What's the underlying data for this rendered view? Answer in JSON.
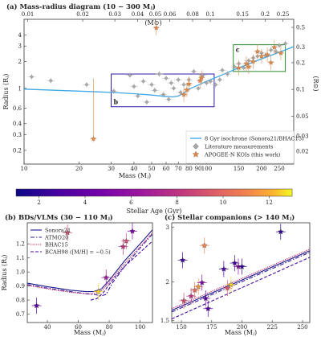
{
  "chart_data": [
    {
      "type": "scatter",
      "panel": "a",
      "title": "(a) Mass-radius diagram (10 − 300 Mⱼ)",
      "xlabel": "Mass (Mⱼ)",
      "ylabel": "Radius (Rⱼ)",
      "ylabel_right": "(R⊙)",
      "top_axis_label": "(M⊙)",
      "xscale": "log",
      "yscale": "log",
      "xlim": [
        10,
        300
      ],
      "ylim": [
        0.14,
        6
      ],
      "xticks": [
        10,
        20,
        30,
        40,
        50,
        60,
        70,
        80,
        90,
        100,
        150,
        200,
        250
      ],
      "xtick_labels": [
        "10",
        "20",
        "30",
        "40",
        "50",
        "60",
        "70",
        "80",
        "90",
        "100",
        "150",
        "200",
        "250"
      ],
      "yticks": [
        0.2,
        0.3,
        0.4,
        0.6,
        1,
        2,
        3,
        4
      ],
      "ytick_labels": [
        "0.2",
        "0.3",
        "0.4",
        "0.6",
        "1",
        "2",
        "3",
        "4"
      ],
      "top_ticks": [
        0.01,
        0.02,
        0.03,
        0.04,
        0.05,
        0.06,
        0.08,
        0.1,
        0.15,
        0.2,
        0.25
      ],
      "top_tick_labels": [
        "0.01",
        "0.02",
        "0.03",
        "0.04",
        "0.05",
        "0.06",
        "0.08",
        "0.1",
        "0.15",
        "0.2",
        "0.25"
      ],
      "right_ticks": [
        0.02,
        0.03,
        0.05,
        0.1,
        0.2,
        0.3,
        0.5
      ],
      "right_tick_labels": [
        "0.02",
        "0.03",
        "0.05",
        "0.1",
        "0.2",
        "0.3",
        "0.5"
      ],
      "boxes": [
        {
          "label": "b",
          "x": [
            30,
            110
          ],
          "y": [
            0.62,
            1.45
          ],
          "color": "#2a1aa6"
        },
        {
          "label": "c",
          "x": [
            140,
            270
          ],
          "y": [
            1.55,
            3.1
          ],
          "color": "#2a8a2a"
        }
      ],
      "legend_position": "lower right",
      "series": [
        {
          "name": "8 Gyr isochrone (Sonora21/BHAC15)",
          "x": [
            10,
            20,
            30,
            40,
            50,
            60,
            65,
            70,
            75,
            80,
            90,
            100,
            120,
            150,
            200,
            250,
            300
          ],
          "y": [
            0.98,
            0.93,
            0.9,
            0.87,
            0.84,
            0.81,
            0.8,
            0.82,
            0.88,
            0.98,
            1.09,
            1.2,
            1.4,
            1.7,
            2.15,
            2.55,
            2.95
          ]
        },
        {
          "name": "Literature measurements",
          "x": [
            11,
            14,
            22,
            31,
            38,
            40,
            42,
            45,
            47,
            50,
            52,
            55,
            58,
            60,
            62,
            64,
            66,
            70,
            72,
            75,
            80,
            85,
            90,
            95,
            100,
            105,
            112,
            118,
            122,
            130,
            142,
            150,
            160,
            170,
            180,
            190,
            200,
            210,
            225,
            240,
            250,
            270
          ],
          "y": [
            1.35,
            1.22,
            1.1,
            0.93,
            1.4,
            1.05,
            0.82,
            1.2,
            0.7,
            1.1,
            0.95,
            1.45,
            0.85,
            1.3,
            0.75,
            1.15,
            1.0,
            1.25,
            0.9,
            1.1,
            1.25,
            1.55,
            1.0,
            1.4,
            1.15,
            1.2,
            1.1,
            1.25,
            1.6,
            1.45,
            1.75,
            1.9,
            1.7,
            2.05,
            2.2,
            2.3,
            2.5,
            2.35,
            2.7,
            2.6,
            3.05,
            3.2
          ]
        },
        {
          "name": "APOGEE-N KOIs (this work)",
          "x": [
            24,
            53,
            75,
            78,
            80,
            92,
            94,
            150,
            165,
            170,
            180,
            190,
            200,
            215,
            225,
            235,
            255
          ],
          "y": [
            0.27,
            4.8,
            0.85,
            0.96,
            1.12,
            1.22,
            1.32,
            1.7,
            1.9,
            1.75,
            2.0,
            2.6,
            2.3,
            2.4,
            1.95,
            2.9,
            2.5
          ]
        }
      ]
    },
    {
      "type": "colorbar",
      "label": "Stellar Age (Gyr)",
      "range": [
        1,
        13
      ],
      "ticks": [
        2,
        4,
        6,
        8,
        10,
        12
      ],
      "tick_labels": [
        "2",
        "4",
        "6",
        "8",
        "10",
        "12"
      ]
    },
    {
      "type": "scatter",
      "panel": "b",
      "title": "(b) BDs/VLMs (30 − 110 Mⱼ)",
      "xlabel": "Mass (Mⱼ)",
      "ylabel": "Radius (Rⱼ)",
      "xlim": [
        27,
        108
      ],
      "ylim": [
        0.64,
        1.35
      ],
      "xticks": [
        40,
        60,
        80,
        100
      ],
      "xtick_labels": [
        "40",
        "60",
        "80",
        "100"
      ],
      "yticks": [
        0.7,
        0.8,
        0.9,
        1.0,
        1.1,
        1.2
      ],
      "ytick_labels": [
        "0.7",
        "0.8",
        "0.9",
        "1.0",
        "1.1",
        "1.2"
      ],
      "legend_position": "top-left",
      "series": [
        {
          "name": "Sonora21",
          "x": [
            27,
            40,
            55,
            65,
            70,
            75,
            80,
            90,
            100,
            108
          ],
          "y": [
            0.92,
            0.895,
            0.87,
            0.86,
            0.86,
            0.88,
            0.94,
            1.08,
            1.2,
            1.3
          ]
        },
        {
          "name": "ATMO20",
          "x": [
            27,
            40,
            55,
            65,
            70,
            75,
            78,
            82,
            90,
            100,
            108
          ],
          "y": [
            0.91,
            0.885,
            0.86,
            0.845,
            0.84,
            0.83,
            0.84,
            0.92,
            1.04,
            1.17,
            1.27
          ]
        },
        {
          "name": "BHAC15",
          "x": [
            27,
            40,
            55,
            65,
            70,
            75,
            80,
            90,
            100,
            108
          ],
          "y": [
            0.905,
            0.88,
            0.855,
            0.845,
            0.845,
            0.865,
            0.925,
            1.06,
            1.18,
            1.28
          ]
        },
        {
          "name": "BCAH98 ([M/H] = −0.5)",
          "x": [
            68,
            72,
            76,
            80,
            85,
            90,
            100,
            108
          ],
          "y": [
            0.8,
            0.81,
            0.85,
            0.91,
            0.98,
            1.04,
            1.14,
            1.22
          ]
        }
      ],
      "points": [
        {
          "x": 33,
          "y": 0.76,
          "age": 3.6
        },
        {
          "x": 53,
          "y": 1.28,
          "age": 9
        },
        {
          "x": 73,
          "y": 0.86,
          "age": 12.5
        },
        {
          "x": 78,
          "y": 0.96,
          "age": 6.5
        },
        {
          "x": 89,
          "y": 1.18,
          "age": 8
        },
        {
          "x": 91,
          "y": 1.22,
          "age": 9
        },
        {
          "x": 95,
          "y": 1.29,
          "age": 5
        }
      ]
    },
    {
      "type": "scatter",
      "panel": "c",
      "title": "(c) Stellar companions (> 140 Mⱼ)",
      "xlabel": "Mass (Mⱼ)",
      "xlim": [
        142,
        256
      ],
      "ylim": [
        1.48,
        3.1
      ],
      "xticks": [
        150,
        175,
        200,
        225,
        250
      ],
      "xtick_labels": [
        "150",
        "175",
        "200",
        "225",
        "250"
      ],
      "yticks": [
        1.5,
        2,
        3
      ],
      "ytick_labels": [
        "1.5",
        "2",
        "3"
      ],
      "series": [
        {
          "name": "Sonora21",
          "x": [
            142,
            256
          ],
          "y": [
            1.62,
            2.52
          ]
        },
        {
          "name": "ATMO20",
          "x": [
            142,
            256
          ],
          "y": [
            1.6,
            2.49
          ]
        },
        {
          "name": "BHAC15",
          "x": [
            142,
            256
          ],
          "y": [
            1.64,
            2.55
          ]
        },
        {
          "name": "BCAH98 ([M/H] = −0.5)",
          "x": [
            142,
            256
          ],
          "y": [
            1.52,
            2.4
          ]
        }
      ],
      "points": [
        {
          "x": 151,
          "y": 2.35,
          "age": 2.6
        },
        {
          "x": 152,
          "y": 1.74,
          "age": 9
        },
        {
          "x": 158,
          "y": 1.8,
          "age": 8
        },
        {
          "x": 161,
          "y": 1.88,
          "age": 10
        },
        {
          "x": 164,
          "y": 1.93,
          "age": 11.5
        },
        {
          "x": 167,
          "y": 1.99,
          "age": 5
        },
        {
          "x": 169,
          "y": 2.62,
          "age": 11
        },
        {
          "x": 170,
          "y": 1.77,
          "age": 4
        },
        {
          "x": 172,
          "y": 1.64,
          "age": 3.5
        },
        {
          "x": 185,
          "y": 2.2,
          "age": 3
        },
        {
          "x": 188,
          "y": 1.91,
          "age": 9.5
        },
        {
          "x": 191,
          "y": 1.96,
          "age": 12.5
        },
        {
          "x": 194,
          "y": 2.3,
          "age": 2.5
        },
        {
          "x": 197,
          "y": 2.24,
          "age": 6
        },
        {
          "x": 200,
          "y": 2.24,
          "age": 2.2
        },
        {
          "x": 232,
          "y": 2.9,
          "age": 2
        }
      ]
    }
  ],
  "colors": {
    "isochrone": "#3fa9e6",
    "literature": "#999999",
    "kois": "#d98a4e",
    "box_b": "#2a1aa6",
    "box_c": "#2a8a2a",
    "sonora": "#1a1a8a",
    "atmo": "#3a1a9a",
    "bhac": "#c0206a",
    "bcah": "#4a10a0"
  }
}
